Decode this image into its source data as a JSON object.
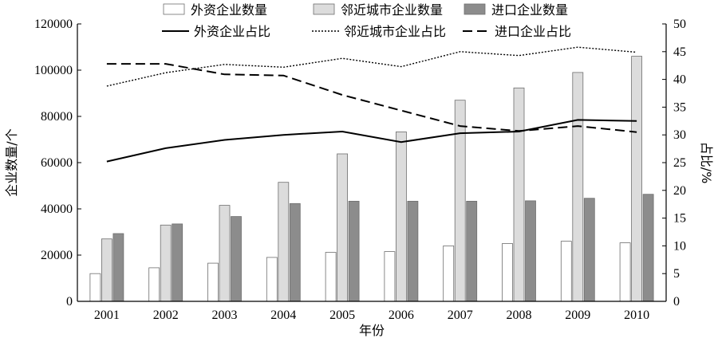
{
  "chart_data": {
    "type": "bar",
    "title": "",
    "xlabel": "年份",
    "ylabel": "企业数量/个",
    "y2label": "占比/%",
    "categories": [
      "2001",
      "2002",
      "2003",
      "2004",
      "2005",
      "2006",
      "2007",
      "2008",
      "2009",
      "2010"
    ],
    "ylim": [
      0,
      120000
    ],
    "yticks": [
      "0",
      "20000",
      "40000",
      "60000",
      "80000",
      "100000",
      "120000"
    ],
    "y2lim": [
      0,
      50
    ],
    "y2ticks": [
      "0",
      "5",
      "10",
      "15",
      "20",
      "25",
      "30",
      "35",
      "40",
      "45",
      "50"
    ],
    "grid": false,
    "legend_position": "top",
    "bar_series": [
      {
        "name": "外资企业数量",
        "color": "#ffffff",
        "values": [
          12000,
          14500,
          16500,
          19000,
          21200,
          21500,
          24000,
          25000,
          26000,
          25300
        ]
      },
      {
        "name": "邻近城市企业数量",
        "color": "#dcdcdc",
        "values": [
          27000,
          33000,
          41500,
          51500,
          63800,
          73300,
          87000,
          92300,
          99000,
          106000
        ]
      },
      {
        "name": "进口企业数量",
        "color": "#8c8c8c",
        "values": [
          29300,
          33500,
          36700,
          42300,
          43300,
          43300,
          43300,
          43500,
          44600,
          46300
        ]
      }
    ],
    "line_series": [
      {
        "name": "外资企业占比",
        "style": "solid",
        "values": [
          25.2,
          27.6,
          29.1,
          30.0,
          30.6,
          28.7,
          30.3,
          30.6,
          32.7,
          32.5
        ]
      },
      {
        "name": "邻近城市企业占比",
        "style": "dotted",
        "values": [
          38.8,
          41.2,
          42.7,
          42.2,
          43.8,
          42.3,
          45.0,
          44.3,
          45.8,
          44.9
        ]
      },
      {
        "name": "进口企业占比",
        "style": "dashed",
        "values": [
          42.8,
          42.8,
          40.9,
          40.7,
          37.2,
          34.4,
          31.6,
          30.7,
          31.6,
          30.5
        ]
      }
    ]
  }
}
